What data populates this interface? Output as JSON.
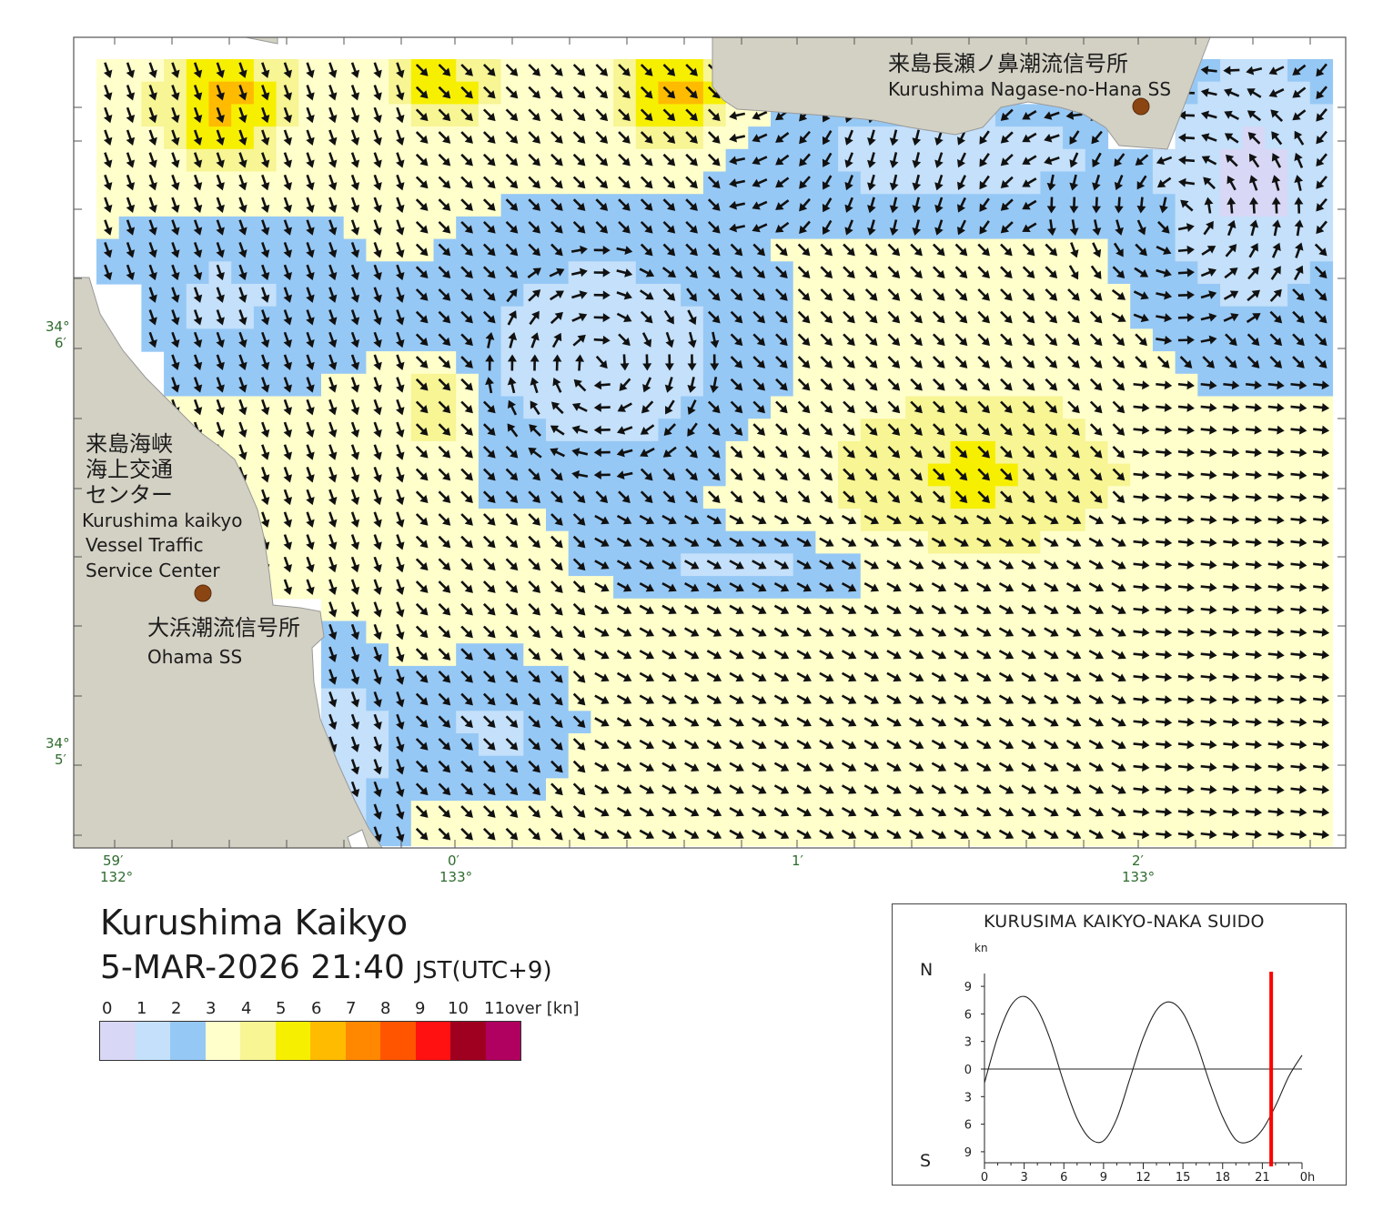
{
  "map": {
    "stations": [
      {
        "id": "nagase",
        "name_jp": "来島長瀬ノ鼻潮流信号所",
        "name_en": "Kurushima Nagase-no-Hana SS"
      },
      {
        "id": "ohama",
        "name_jp": "大浜潮流信号所",
        "name_en": "Ohama SS"
      }
    ],
    "vts": {
      "name_jp_lines": [
        "来島海峡",
        "海上交通",
        "センター"
      ],
      "name_en_lines": [
        "Kurushima kaikyo",
        "Vessel Traffic",
        "Service Center"
      ]
    },
    "lat_ticks": [
      {
        "deg": "34°",
        "min": "6′"
      },
      {
        "deg": "34°",
        "min": "5′"
      }
    ],
    "lon_ticks": [
      {
        "top": "59′",
        "bottom": "132°"
      },
      {
        "top": "0′",
        "bottom": "133°"
      },
      {
        "top": "1′",
        "bottom": ""
      },
      {
        "top": "2′",
        "bottom": "133°"
      }
    ],
    "colors": {
      "land": "#d3d1c4",
      "water": "#ffffff",
      "arrow": "#111111",
      "station": "#8b4513",
      "frame": "#555555"
    }
  },
  "header": {
    "title": "Kurushima Kaikyo",
    "datetime": "5-MAR-2026 21:40",
    "timezone": "JST(UTC+9)"
  },
  "legend": {
    "labels": [
      "0",
      "1",
      "2",
      "3",
      "4",
      "5",
      "6",
      "7",
      "8",
      "9",
      "10",
      "11over [kn]"
    ],
    "colors": [
      "#d8d8f6",
      "#c4e0fa",
      "#96c8f5",
      "#ffffcc",
      "#f7f594",
      "#f7ef00",
      "#ffbb00",
      "#ff8800",
      "#ff5500",
      "#ff1111",
      "#a00020",
      "#b00060"
    ]
  },
  "tide_chart": {
    "title": "KURUSIMA KAIKYO-NAKA SUIDO",
    "unit": "kn",
    "north_label": "N",
    "south_label": "S",
    "y_ticks": [
      "9",
      "6",
      "3",
      "0",
      "3",
      "6",
      "9"
    ],
    "x_ticks": [
      "0",
      "3",
      "6",
      "9",
      "12",
      "15",
      "18",
      "21",
      "0h"
    ],
    "current_hour": 21.67,
    "marker_color": "#ff0000",
    "chart_data": {
      "type": "line",
      "title": "KURUSIMA KAIKYO-NAKA SUIDO",
      "ylabel": "kn",
      "x": [
        0,
        1,
        2,
        3,
        4,
        5,
        6,
        7,
        8,
        9,
        10,
        11,
        12,
        13,
        14,
        15,
        16,
        17,
        18,
        19,
        20,
        21,
        22,
        23,
        24
      ],
      "series": [
        {
          "values": [
            -1.5,
            3.5,
            6.9,
            7.9,
            6.5,
            3.1,
            -1.5,
            -5.4,
            -7.6,
            -7.8,
            -5.4,
            -1.0,
            3.4,
            6.4,
            7.3,
            6.1,
            2.9,
            -1.4,
            -5.2,
            -7.7,
            -7.9,
            -6.6,
            -4.0,
            -0.8,
            1.5
          ]
        }
      ],
      "ylim": [
        -10,
        10
      ],
      "xlim": [
        0,
        24
      ],
      "ylabel_N": "N",
      "ylabel_S": "S"
    }
  }
}
